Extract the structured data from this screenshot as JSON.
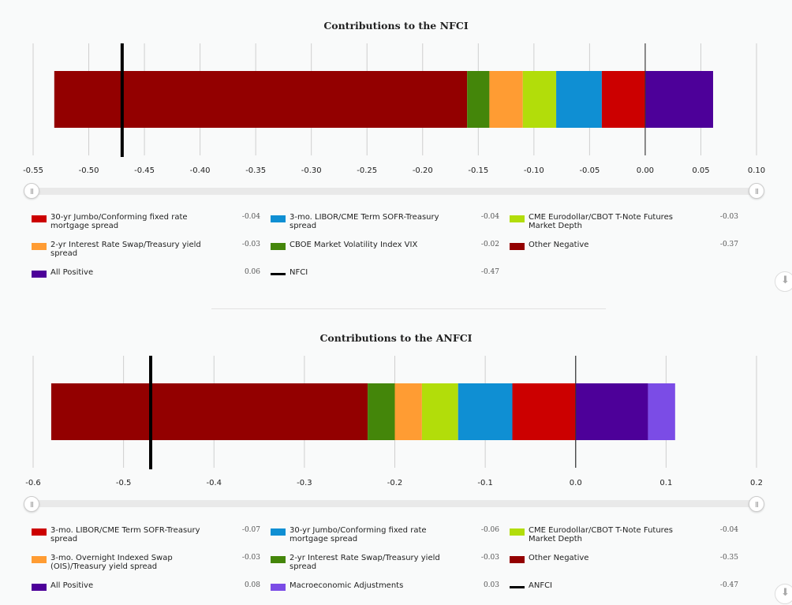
{
  "charts": [
    {
      "title": "Contributions to the NFCI",
      "download_icon": "download-icon",
      "legend": [
        {
          "label": "30-yr Jumbo/Conforming fixed rate mortgage spread",
          "value": "-0.04",
          "color": "#cc0000",
          "kind": "box"
        },
        {
          "label": "3-mo. LIBOR/CME Term SOFR-Treasury spread",
          "value": "-0.04",
          "color": "#0f8fd3",
          "kind": "box"
        },
        {
          "label": "CME Eurodollar/CBOT T-Note Futures Market Depth",
          "value": "-0.03",
          "color": "#b2dd0a",
          "kind": "box"
        },
        {
          "label": "2-yr Interest Rate Swap/Treasury yield spread",
          "value": "-0.03",
          "color": "#ff9c33",
          "kind": "box"
        },
        {
          "label": "CBOE Market Volatility Index VIX",
          "value": "-0.02",
          "color": "#44860a",
          "kind": "box"
        },
        {
          "label": "Other Negative",
          "value": "-0.37",
          "color": "#930000",
          "kind": "box"
        },
        {
          "label": "All Positive",
          "value": "0.06",
          "color": "#4d0099",
          "kind": "box"
        },
        {
          "label": "NFCI",
          "value": "-0.47",
          "color": "#000000",
          "kind": "line"
        }
      ]
    },
    {
      "title": "Contributions to the ANFCI",
      "download_icon": "download-icon",
      "legend": [
        {
          "label": "3-mo. LIBOR/CME Term SOFR-Treasury spread",
          "value": "-0.07",
          "color": "#cc0000",
          "kind": "box"
        },
        {
          "label": "30-yr Jumbo/Conforming fixed rate mortgage spread",
          "value": "-0.06",
          "color": "#0f8fd3",
          "kind": "box"
        },
        {
          "label": "CME Eurodollar/CBOT T-Note Futures Market Depth",
          "value": "-0.04",
          "color": "#b2dd0a",
          "kind": "box"
        },
        {
          "label": "3-mo. Overnight Indexed Swap (OIS)/Treasury yield spread",
          "value": "-0.03",
          "color": "#ff9c33",
          "kind": "box"
        },
        {
          "label": "2-yr Interest Rate Swap/Treasury yield spread",
          "value": "-0.03",
          "color": "#44860a",
          "kind": "box"
        },
        {
          "label": "Other Negative",
          "value": "-0.35",
          "color": "#930000",
          "kind": "box"
        },
        {
          "label": "All Positive",
          "value": "0.08",
          "color": "#4d0099",
          "kind": "box"
        },
        {
          "label": "Macroeconomic Adjustments",
          "value": "0.03",
          "color": "#7b4ce6",
          "kind": "box"
        },
        {
          "label": "ANFCI",
          "value": "-0.47",
          "color": "#000000",
          "kind": "line"
        }
      ]
    }
  ],
  "chart_data": [
    {
      "type": "bar",
      "orientation": "horizontal-stacked",
      "title": "Contributions to the NFCI",
      "xlim": [
        -0.55,
        0.1
      ],
      "ticks": [
        "-0.55",
        "-0.50",
        "-0.45",
        "-0.40",
        "-0.35",
        "-0.30",
        "-0.25",
        "-0.20",
        "-0.15",
        "-0.10",
        "-0.05",
        "0.00",
        "0.05",
        "0.10"
      ],
      "tick_values": [
        -0.55,
        -0.5,
        -0.45,
        -0.4,
        -0.35,
        -0.3,
        -0.25,
        -0.2,
        -0.15,
        -0.1,
        -0.05,
        0.0,
        0.05,
        0.1
      ],
      "grid": true,
      "segments": [
        {
          "series": "Other Negative",
          "start": -0.531,
          "end": -0.16,
          "color": "#930000"
        },
        {
          "series": "CBOE Market Volatility Index VIX",
          "start": -0.16,
          "end": -0.14,
          "color": "#44860a"
        },
        {
          "series": "2-yr Interest Rate Swap/Treasury yield spread",
          "start": -0.14,
          "end": -0.11,
          "color": "#ff9c33"
        },
        {
          "series": "CME Eurodollar/CBOT T-Note Futures Market Depth",
          "start": -0.11,
          "end": -0.08,
          "color": "#b2dd0a"
        },
        {
          "series": "3-mo. LIBOR/CME Term SOFR-Treasury spread",
          "start": -0.08,
          "end": -0.039,
          "color": "#0f8fd3"
        },
        {
          "series": "30-yr Jumbo/Conforming fixed rate mortgage spread",
          "start": -0.039,
          "end": 0.0,
          "color": "#cc0000"
        },
        {
          "series": "All Positive",
          "start": 0.0,
          "end": 0.061,
          "color": "#4d0099"
        }
      ],
      "marker": {
        "series": "NFCI",
        "value": -0.47
      }
    },
    {
      "type": "bar",
      "orientation": "horizontal-stacked",
      "title": "Contributions to the ANFCI",
      "xlim": [
        -0.6,
        0.2
      ],
      "ticks": [
        "-0.6",
        "-0.5",
        "-0.4",
        "-0.3",
        "-0.2",
        "-0.1",
        "0.0",
        "0.1",
        "0.2"
      ],
      "tick_values": [
        -0.6,
        -0.5,
        -0.4,
        -0.3,
        -0.2,
        -0.1,
        0.0,
        0.1,
        0.2
      ],
      "grid": true,
      "segments": [
        {
          "series": "Other Negative",
          "start": -0.58,
          "end": -0.23,
          "color": "#930000"
        },
        {
          "series": "2-yr Interest Rate Swap/Treasury yield spread",
          "start": -0.23,
          "end": -0.2,
          "color": "#44860a"
        },
        {
          "series": "3-mo. Overnight Indexed Swap (OIS)/Treasury yield spread",
          "start": -0.2,
          "end": -0.17,
          "color": "#ff9c33"
        },
        {
          "series": "CME Eurodollar/CBOT T-Note Futures Market Depth",
          "start": -0.17,
          "end": -0.13,
          "color": "#b2dd0a"
        },
        {
          "series": "30-yr Jumbo/Conforming fixed rate mortgage spread",
          "start": -0.13,
          "end": -0.07,
          "color": "#0f8fd3"
        },
        {
          "series": "3-mo. LIBOR/CME Term SOFR-Treasury spread",
          "start": -0.07,
          "end": 0.0,
          "color": "#cc0000"
        },
        {
          "series": "All Positive",
          "start": 0.0,
          "end": 0.08,
          "color": "#4d0099"
        },
        {
          "series": "Macroeconomic Adjustments",
          "start": 0.08,
          "end": 0.11,
          "color": "#7b4ce6"
        }
      ],
      "marker": {
        "series": "ANFCI",
        "value": -0.47
      }
    }
  ]
}
